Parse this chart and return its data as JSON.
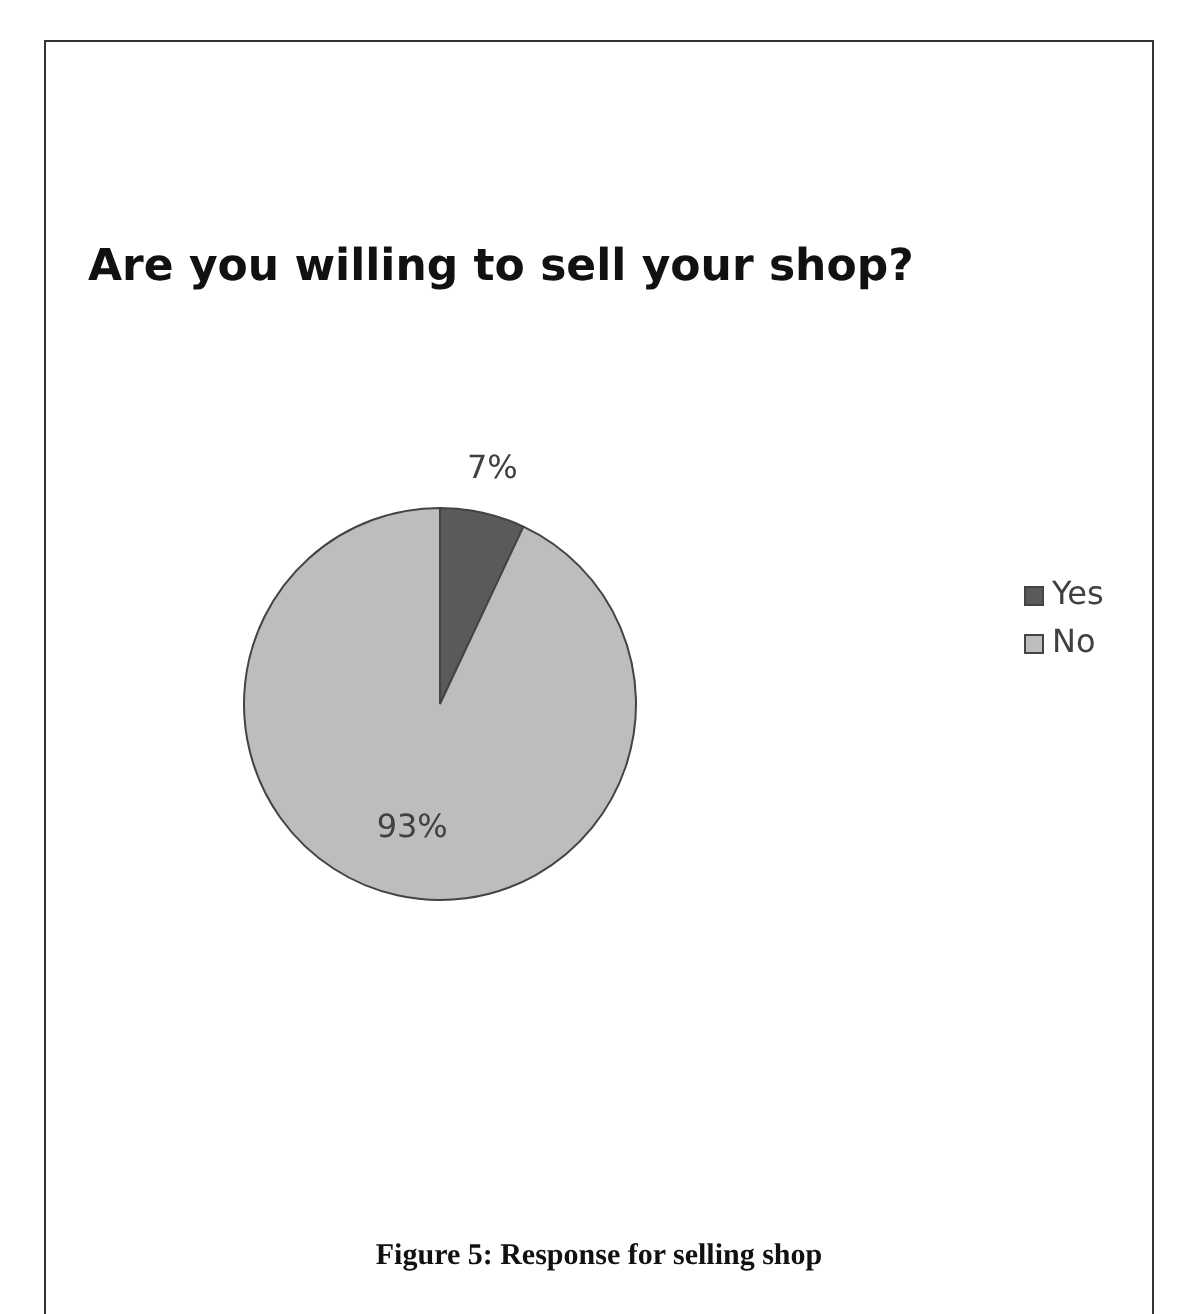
{
  "chart_data": {
    "type": "pie",
    "title": "Are you willing to sell your shop?",
    "categories": [
      "Yes",
      "No"
    ],
    "values": [
      7,
      93
    ],
    "colors": [
      "#5a5a5a",
      "#bdbdbd"
    ],
    "value_labels": [
      "7%",
      "93%"
    ],
    "legend": "right",
    "annotations": [
      "Figure 5: Response for selling shop"
    ]
  }
}
